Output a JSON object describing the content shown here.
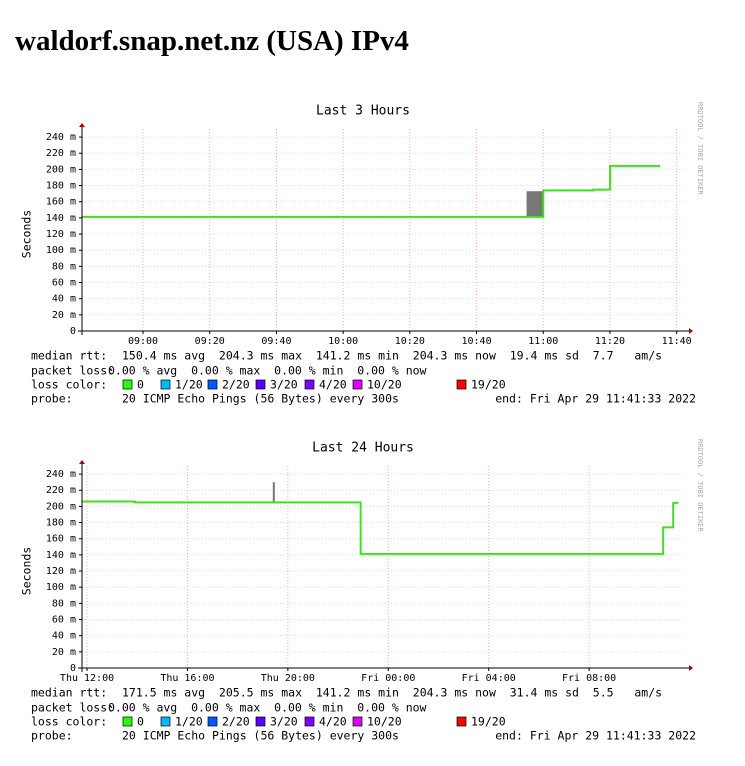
{
  "header": {
    "title": "waldorf.snap.net.nz (USA) IPv4"
  },
  "chart_data": [
    {
      "type": "line",
      "title": "Last 3 Hours",
      "y_label": "Seconds",
      "watermark": "RRDTOOL / TOBI OETIKER",
      "ylim": [
        0,
        0.25
      ],
      "yticks": [
        {
          "value": 0,
          "label": "0"
        },
        {
          "value": 0.02,
          "label": "20 m"
        },
        {
          "value": 0.04,
          "label": "40 m"
        },
        {
          "value": 0.06,
          "label": "60 m"
        },
        {
          "value": 0.08,
          "label": "80 m"
        },
        {
          "value": 0.1,
          "label": "100 m"
        },
        {
          "value": 0.12,
          "label": "120 m"
        },
        {
          "value": 0.14,
          "label": "140 m"
        },
        {
          "value": 0.16,
          "label": "160 m"
        },
        {
          "value": 0.18,
          "label": "180 m"
        },
        {
          "value": 0.2,
          "label": "200 m"
        },
        {
          "value": 0.22,
          "label": "220 m"
        },
        {
          "value": 0.24,
          "label": "240 m"
        }
      ],
      "xlim": [
        521.7,
        702.5
      ],
      "xticks": [
        {
          "value": 540,
          "label": "09:00"
        },
        {
          "value": 560,
          "label": "09:20"
        },
        {
          "value": 580,
          "label": "09:40"
        },
        {
          "value": 600,
          "label": "10:00"
        },
        {
          "value": 620,
          "label": "10:20"
        },
        {
          "value": 640,
          "label": "10:40"
        },
        {
          "value": 660,
          "label": "11:00"
        },
        {
          "value": 680,
          "label": "11:20"
        },
        {
          "value": 700,
          "label": "11:40"
        }
      ],
      "grid": true,
      "series": [
        {
          "color": "#44dd22",
          "x": [
            521.7,
            660,
            675,
            680,
            695
          ],
          "values": [
            0.1412,
            0.174,
            0.175,
            0.2043,
            0.2043
          ]
        }
      ],
      "smoke": [
        {
          "x0": 655,
          "x1": 660,
          "low": 0.1412,
          "high": 0.173
        }
      ],
      "stats": [
        {
          "label": "median rtt:",
          "text": "150.4 ms avg  204.3 ms max  141.2 ms min  204.3 ms now  19.4 ms sd  7.7   am/s"
        },
        {
          "label": "packet loss:",
          "text": "0.00 % avg  0.00 % max  0.00 % min  0.00 % now"
        }
      ],
      "loss_color": {
        "label": "loss color:",
        "items": [
          {
            "label": "0",
            "color": "#26ff00"
          },
          {
            "label": "1/20",
            "color": "#00b8ff"
          },
          {
            "label": "2/20",
            "color": "#0059ff"
          },
          {
            "label": "3/20",
            "color": "#5e00ff"
          },
          {
            "label": "4/20",
            "color": "#7e00ff"
          },
          {
            "label": "10/20",
            "color": "#dd00ff"
          },
          {
            "label": "19/20",
            "color": "#ff0000"
          }
        ]
      },
      "probe": {
        "label": "probe:",
        "text": "20 ICMP Echo Pings (56 Bytes) every 300s",
        "end": "end: Fri Apr 29 11:41:33 2022"
      }
    },
    {
      "type": "line",
      "title": "Last 24 Hours",
      "y_label": "Seconds",
      "watermark": "RRDTOOL / TOBI OETIKER",
      "ylim": [
        0,
        0.25
      ],
      "yticks": [
        {
          "value": 0,
          "label": "0"
        },
        {
          "value": 0.02,
          "label": "20 m"
        },
        {
          "value": 0.04,
          "label": "40 m"
        },
        {
          "value": 0.06,
          "label": "60 m"
        },
        {
          "value": 0.08,
          "label": "80 m"
        },
        {
          "value": 0.1,
          "label": "100 m"
        },
        {
          "value": 0.12,
          "label": "120 m"
        },
        {
          "value": 0.14,
          "label": "140 m"
        },
        {
          "value": 0.16,
          "label": "160 m"
        },
        {
          "value": 0.18,
          "label": "180 m"
        },
        {
          "value": 0.2,
          "label": "200 m"
        },
        {
          "value": 0.22,
          "label": "220 m"
        },
        {
          "value": 0.24,
          "label": "240 m"
        }
      ],
      "xlim": [
        11.8,
        35.82
      ],
      "xticks": [
        {
          "value": 12,
          "label": "Thu 12:00"
        },
        {
          "value": 16,
          "label": "Thu 16:00"
        },
        {
          "value": 20,
          "label": "Thu 20:00"
        },
        {
          "value": 24,
          "label": "Fri 00:00"
        },
        {
          "value": 28,
          "label": "Fri 04:00"
        },
        {
          "value": 32,
          "label": "Fri 08:00"
        }
      ],
      "grid": true,
      "series": [
        {
          "color": "#44dd22",
          "x": [
            11.8,
            13.9,
            22.9,
            34.95,
            35.35,
            35.55
          ],
          "values": [
            0.206,
            0.205,
            0.1412,
            0.174,
            0.2043,
            0.2043
          ]
        }
      ],
      "smoke": [
        {
          "x0": 19.4,
          "x1": 19.48,
          "low": 0.205,
          "high": 0.23
        }
      ],
      "stats": [
        {
          "label": "median rtt:",
          "text": "171.5 ms avg  205.5 ms max  141.2 ms min  204.3 ms now  31.4 ms sd  5.5   am/s"
        },
        {
          "label": "packet loss:",
          "text": "0.00 % avg  0.00 % max  0.00 % min  0.00 % now"
        }
      ],
      "loss_color": {
        "label": "loss color:",
        "items": [
          {
            "label": "0",
            "color": "#26ff00"
          },
          {
            "label": "1/20",
            "color": "#00b8ff"
          },
          {
            "label": "2/20",
            "color": "#0059ff"
          },
          {
            "label": "3/20",
            "color": "#5e00ff"
          },
          {
            "label": "4/20",
            "color": "#7e00ff"
          },
          {
            "label": "10/20",
            "color": "#dd00ff"
          },
          {
            "label": "19/20",
            "color": "#ff0000"
          }
        ]
      },
      "probe": {
        "label": "probe:",
        "text": "20 ICMP Echo Pings (56 Bytes) every 300s",
        "end": "end: Fri Apr 29 11:41:33 2022"
      }
    }
  ]
}
